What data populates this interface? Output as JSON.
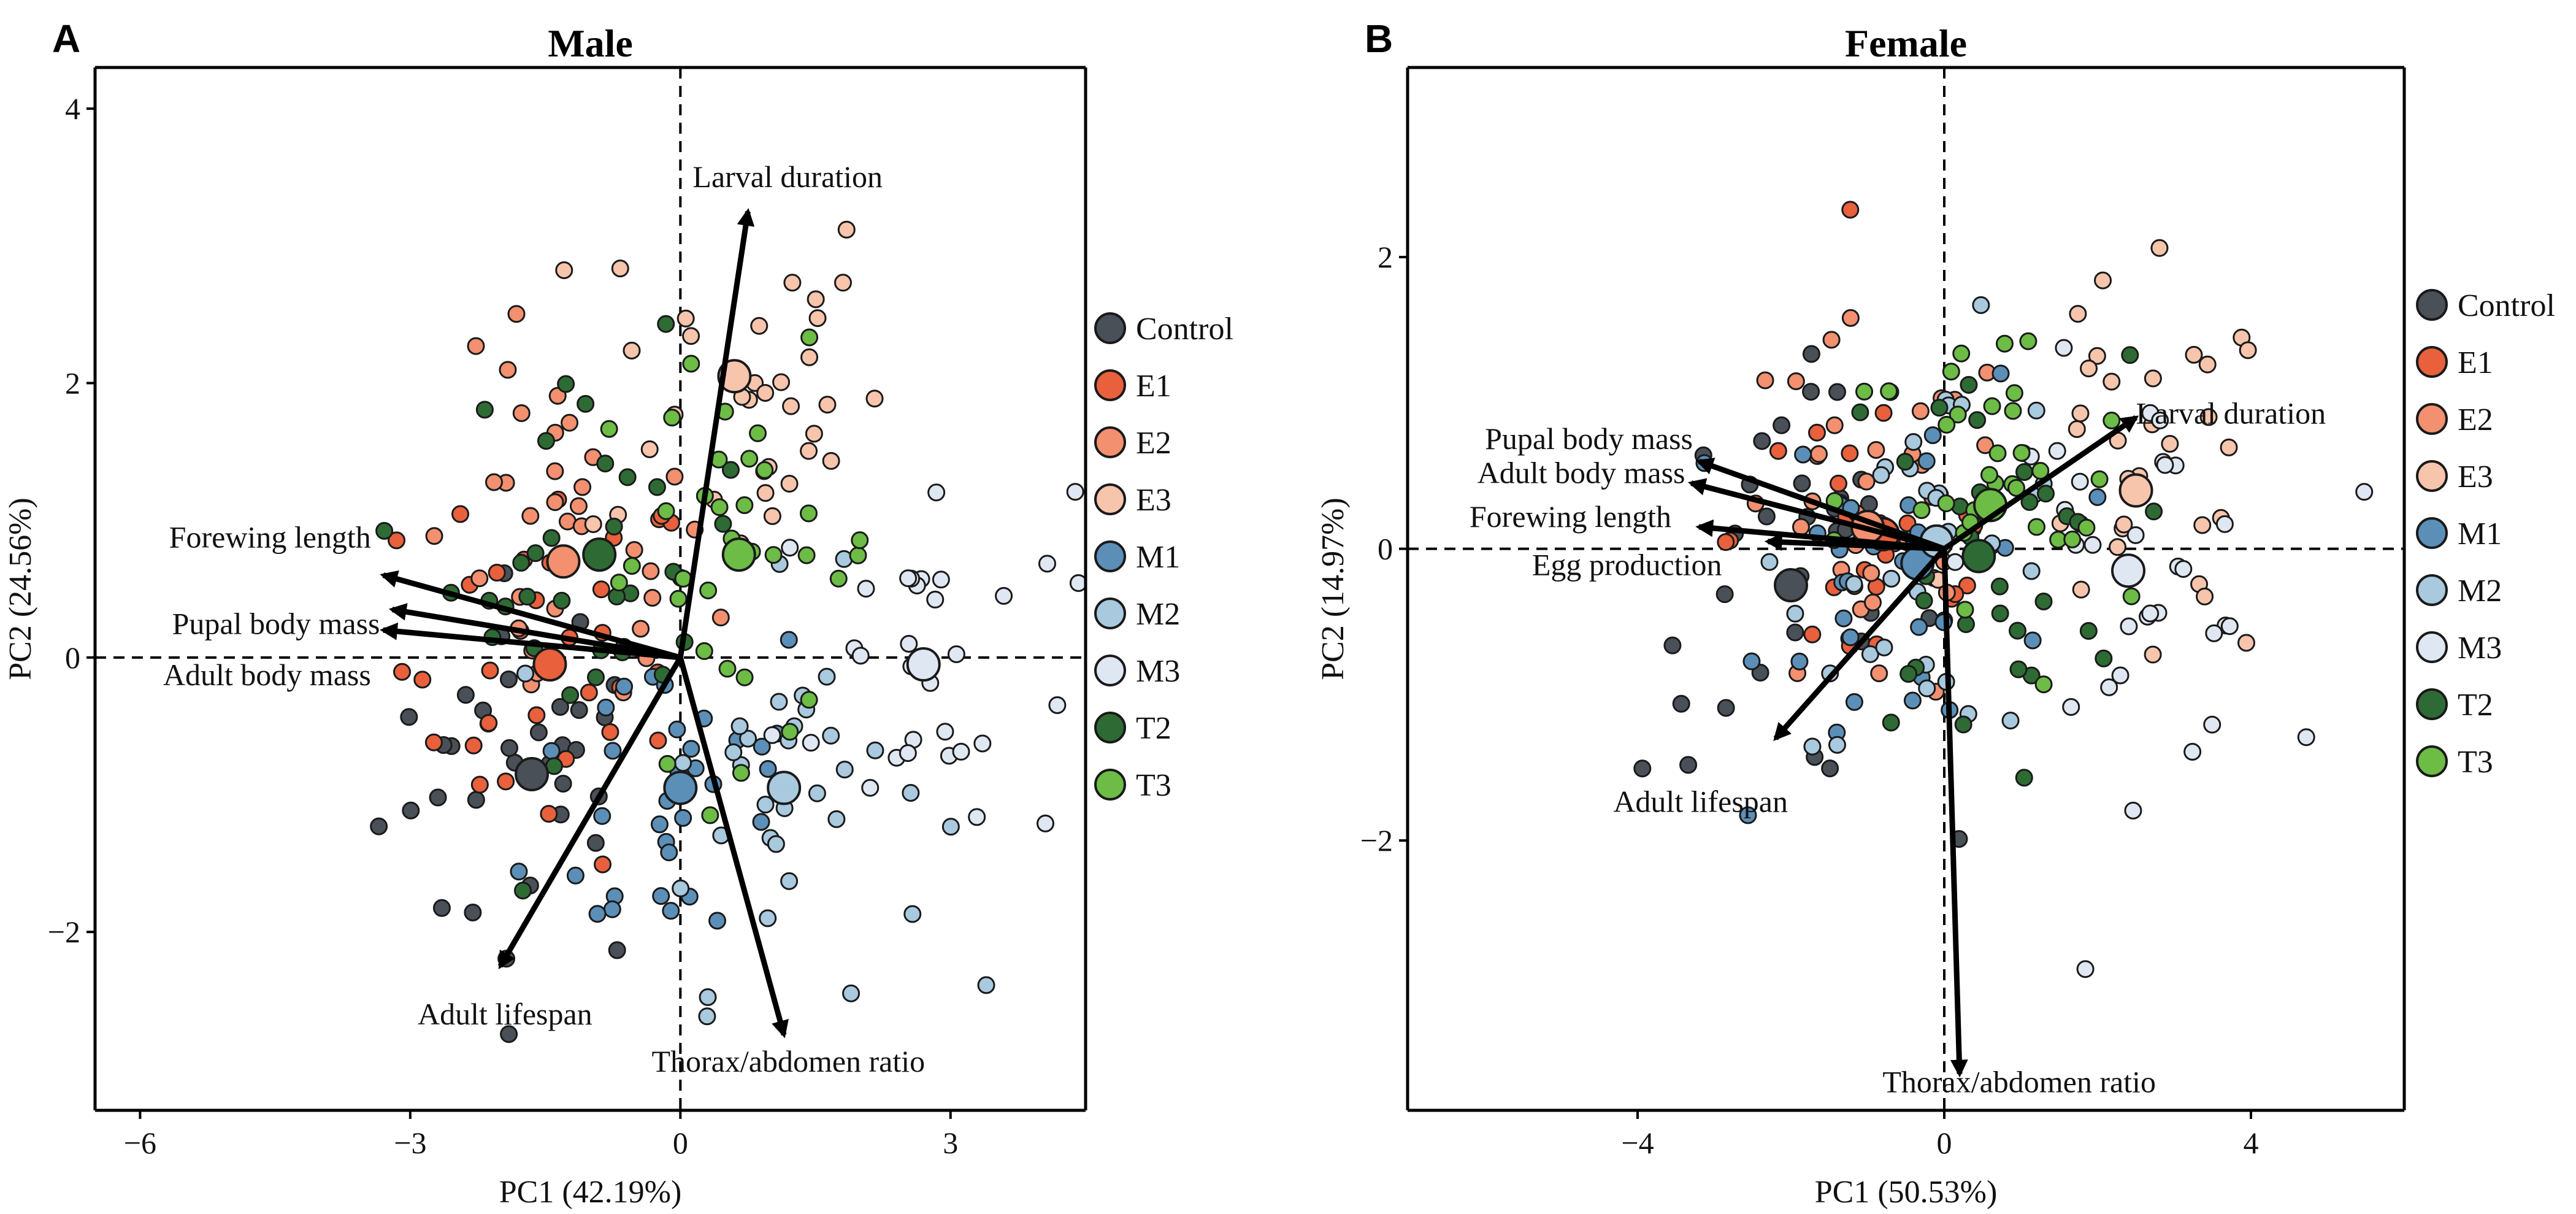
{
  "chart_data": [
    {
      "type": "scatter",
      "panel": "A",
      "title": "Male",
      "xlabel": "PC1 (42.19%)",
      "ylabel": "PC2 (24.56%)",
      "xlim": [
        -6.5,
        4.5
      ],
      "ylim": [
        -3.3,
        4.3
      ],
      "xticks": [
        -6,
        -3,
        0,
        3
      ],
      "xtick_labels": [
        "−6",
        "−3",
        "0",
        "3"
      ],
      "yticks": [
        -2,
        0,
        2,
        4
      ],
      "ytick_labels": [
        "−2",
        "0",
        "2",
        "4"
      ],
      "legend": {
        "position": "right",
        "entries": [
          "Control",
          "E1",
          "E2",
          "E3",
          "M1",
          "M2",
          "M3",
          "T2",
          "T3"
        ],
        "colors": [
          "#4a5058",
          "#e8603c",
          "#f29070",
          "#f7c4ac",
          "#5b8fb8",
          "#a9c9de",
          "#dfe8f2",
          "#2e6b34",
          "#6cbc45"
        ]
      },
      "loadings": [
        {
          "label": "Larval duration",
          "x": 0.75,
          "y": 3.25
        },
        {
          "label": "Forewing length",
          "x": -3.3,
          "y": 0.6
        },
        {
          "label": "Pupal body mass",
          "x": -3.2,
          "y": 0.35
        },
        {
          "label": "Adult body mass",
          "x": -3.3,
          "y": 0.2
        },
        {
          "label": "Adult lifespan",
          "x": -2.0,
          "y": -2.25
        },
        {
          "label": "Thorax/abdomen ratio",
          "x": 1.15,
          "y": -2.75
        }
      ],
      "centroids": [
        {
          "group": "Control",
          "x": -1.65,
          "y": -0.85
        },
        {
          "group": "E1",
          "x": -1.45,
          "y": -0.05
        },
        {
          "group": "E2",
          "x": -1.3,
          "y": 0.7
        },
        {
          "group": "E3",
          "x": 0.6,
          "y": 2.05
        },
        {
          "group": "M1",
          "x": 0.0,
          "y": -0.95
        },
        {
          "group": "M2",
          "x": 1.15,
          "y": -0.95
        },
        {
          "group": "M3",
          "x": 2.7,
          "y": -0.05
        },
        {
          "group": "T2",
          "x": -0.9,
          "y": 0.75
        },
        {
          "group": "T3",
          "x": 0.65,
          "y": 0.75
        }
      ]
    },
    {
      "type": "scatter",
      "panel": "B",
      "title": "Female",
      "xlabel": "PC1 (50.53%)",
      "ylabel": "PC2 (14.97%)",
      "xlim": [
        -7,
        6
      ],
      "ylim": [
        -3.85,
        3.3
      ],
      "xticks": [
        -4,
        0,
        4
      ],
      "xtick_labels": [
        "−4",
        "0",
        "4"
      ],
      "yticks": [
        -2,
        0,
        2
      ],
      "ytick_labels": [
        "−2",
        "0",
        "2"
      ],
      "legend": {
        "position": "right",
        "entries": [
          "Control",
          "E1",
          "E2",
          "E3",
          "M1",
          "M2",
          "M3",
          "T2",
          "T3"
        ],
        "colors": [
          "#4a5058",
          "#e8603c",
          "#f29070",
          "#f7c4ac",
          "#5b8fb8",
          "#a9c9de",
          "#dfe8f2",
          "#2e6b34",
          "#6cbc45"
        ]
      },
      "loadings": [
        {
          "label": "Larval duration",
          "x": 2.5,
          "y": 0.9
        },
        {
          "label": "Pupal body mass",
          "x": -3.2,
          "y": 0.6
        },
        {
          "label": "Adult body mass",
          "x": -3.3,
          "y": 0.45
        },
        {
          "label": "Forewing length",
          "x": -3.2,
          "y": 0.15
        },
        {
          "label": "Egg production",
          "x": -2.3,
          "y": 0.05
        },
        {
          "label": "Adult lifespan",
          "x": -2.2,
          "y": -1.3
        },
        {
          "label": "Thorax/abdomen ratio",
          "x": 0.2,
          "y": -3.6
        }
      ],
      "centroids": [
        {
          "group": "Control",
          "x": -2.0,
          "y": -0.25
        },
        {
          "group": "E1",
          "x": -0.8,
          "y": 0.1
        },
        {
          "group": "E2",
          "x": -1.0,
          "y": 0.15
        },
        {
          "group": "E3",
          "x": 2.5,
          "y": 0.4
        },
        {
          "group": "M1",
          "x": -0.35,
          "y": -0.1
        },
        {
          "group": "M2",
          "x": -0.1,
          "y": 0.05
        },
        {
          "group": "M3",
          "x": 2.4,
          "y": -0.15
        },
        {
          "group": "T2",
          "x": 0.45,
          "y": -0.05
        },
        {
          "group": "T3",
          "x": 0.6,
          "y": 0.3
        }
      ]
    }
  ]
}
